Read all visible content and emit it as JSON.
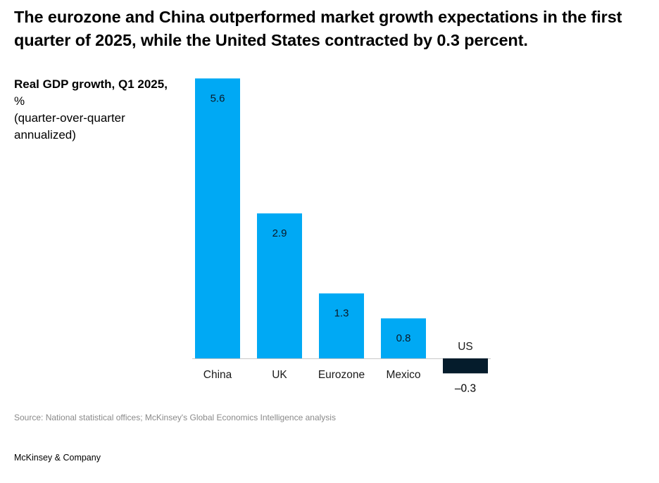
{
  "title": "The eurozone and China outperformed market growth expectations in the first quarter of 2025, while the United States contracted by 0.3 percent.",
  "ylabel": {
    "bold": "Real GDP growth, Q1 2025,",
    "unit": " %",
    "note": "(quarter-over-quarter annualized)"
  },
  "source": "Source: National statistical offices; McKinsey's Global Economics Intelligence analysis",
  "brand": "McKinsey & Company",
  "colors": {
    "positive": "#00A9F4",
    "negative": "#051C2C",
    "baseline": "#c8c8c8"
  },
  "chart_data": {
    "type": "bar",
    "categories": [
      "China",
      "UK",
      "Eurozone",
      "Mexico",
      "US"
    ],
    "values": [
      5.6,
      2.9,
      1.3,
      0.8,
      -0.3
    ],
    "value_labels": [
      "5.6",
      "2.9",
      "1.3",
      "0.8",
      "–0.3"
    ],
    "ylabel": "Real GDP growth, Q1 2025, % (quarter-over-quarter annualized)",
    "grid": false,
    "legend": "none"
  }
}
